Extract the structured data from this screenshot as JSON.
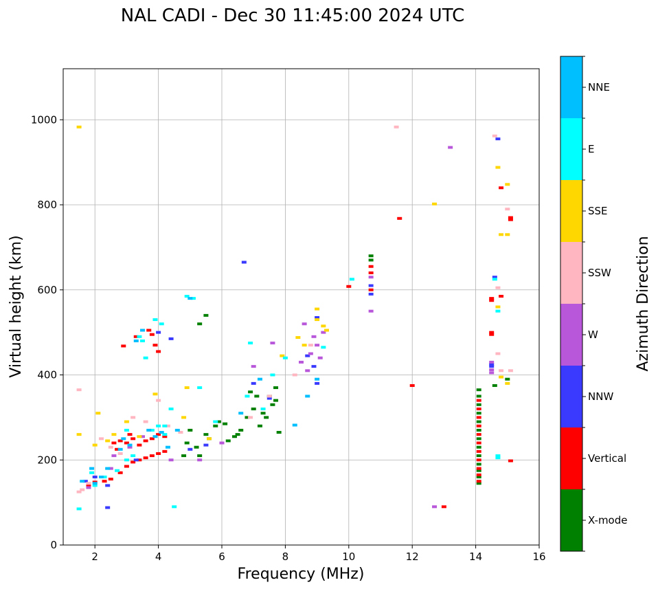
{
  "chart_data": {
    "type": "scatter",
    "title": "NAL CADI - Dec 30 11:45:00 2024 UTC",
    "xlabel": "Frequency (MHz)",
    "ylabel": "Virtual height (km)",
    "xlim": [
      1,
      16
    ],
    "ylim": [
      0,
      1120
    ],
    "xticks": [
      2,
      4,
      6,
      8,
      10,
      12,
      14,
      16
    ],
    "yticks": [
      0,
      200,
      400,
      600,
      800,
      1000
    ],
    "grid": true,
    "colorbar": {
      "label": "Azimuth Direction",
      "categories": [
        "X-mode",
        "Vertical",
        "NNW",
        "W",
        "SSW",
        "SSE",
        "E",
        "NNE"
      ],
      "colors": [
        "#008000",
        "#ff0000",
        "#3a3aff",
        "#b857d9",
        "#ffb6c1",
        "#ffd700",
        "#00ffff",
        "#00bfff"
      ]
    },
    "series": [
      {
        "name": "X-mode",
        "points": [
          [
            5.2,
            230
          ],
          [
            5.5,
            260
          ],
          [
            5.8,
            280
          ],
          [
            6.1,
            285
          ],
          [
            6.4,
            255
          ],
          [
            6.6,
            270
          ],
          [
            6.8,
            300
          ],
          [
            7.0,
            320
          ],
          [
            7.2,
            280
          ],
          [
            7.4,
            300
          ],
          [
            7.6,
            330
          ],
          [
            7.7,
            370
          ],
          [
            7.8,
            265
          ],
          [
            7.5,
            350
          ],
          [
            7.3,
            310
          ],
          [
            6.9,
            360
          ],
          [
            6.2,
            245
          ],
          [
            5.6,
            250
          ],
          [
            5.0,
            270
          ],
          [
            4.8,
            210
          ],
          [
            4.9,
            240
          ],
          [
            5.3,
            210
          ],
          [
            5.9,
            290
          ],
          [
            6.5,
            260
          ],
          [
            7.1,
            350
          ],
          [
            7.7,
            340
          ],
          [
            5.5,
            540
          ],
          [
            5.3,
            520
          ],
          [
            10.7,
            680
          ],
          [
            10.7,
            670
          ],
          [
            14.1,
            145
          ],
          [
            14.1,
            160
          ],
          [
            14.1,
            175
          ],
          [
            14.1,
            190
          ],
          [
            14.1,
            210
          ],
          [
            14.1,
            230
          ],
          [
            14.1,
            250
          ],
          [
            14.1,
            270
          ],
          [
            14.1,
            290
          ],
          [
            14.1,
            310
          ],
          [
            14.1,
            330
          ],
          [
            14.1,
            350
          ],
          [
            14.1,
            365
          ],
          [
            15.0,
            390
          ],
          [
            14.6,
            375
          ]
        ]
      },
      {
        "name": "Vertical",
        "points": [
          [
            1.8,
            140
          ],
          [
            2.0,
            148
          ],
          [
            2.3,
            150
          ],
          [
            2.5,
            155
          ],
          [
            2.8,
            170
          ],
          [
            3.0,
            185
          ],
          [
            3.2,
            195
          ],
          [
            3.4,
            200
          ],
          [
            3.6,
            205
          ],
          [
            3.8,
            210
          ],
          [
            4.0,
            215
          ],
          [
            4.2,
            220
          ],
          [
            2.6,
            240
          ],
          [
            2.8,
            245
          ],
          [
            3.0,
            240
          ],
          [
            3.2,
            250
          ],
          [
            3.4,
            235
          ],
          [
            3.6,
            245
          ],
          [
            3.8,
            250
          ],
          [
            4.0,
            260
          ],
          [
            4.2,
            255
          ],
          [
            3.7,
            505
          ],
          [
            3.8,
            495
          ],
          [
            3.9,
            470
          ],
          [
            4.0,
            455
          ],
          [
            3.5,
            480
          ],
          [
            3.3,
            490
          ],
          [
            2.9,
            468
          ],
          [
            3.1,
            260
          ],
          [
            2.7,
            225
          ],
          [
            10.7,
            600
          ],
          [
            10.7,
            640
          ],
          [
            10.7,
            655
          ],
          [
            12.0,
            375
          ],
          [
            14.1,
            150
          ],
          [
            14.1,
            165
          ],
          [
            14.1,
            180
          ],
          [
            14.1,
            200
          ],
          [
            14.1,
            220
          ],
          [
            14.1,
            240
          ],
          [
            14.1,
            260
          ],
          [
            14.1,
            280
          ],
          [
            14.1,
            300
          ],
          [
            14.1,
            320
          ],
          [
            14.1,
            340
          ],
          [
            14.5,
            500
          ],
          [
            14.5,
            495
          ],
          [
            14.5,
            580
          ],
          [
            14.5,
            575
          ],
          [
            14.8,
            840
          ],
          [
            14.8,
            585
          ],
          [
            15.1,
            765
          ],
          [
            15.1,
            770
          ],
          [
            13.0,
            90
          ],
          [
            15.1,
            198
          ],
          [
            11.6,
            768
          ],
          [
            10.0,
            608
          ]
        ]
      },
      {
        "name": "NNW",
        "points": [
          [
            1.7,
            150
          ],
          [
            2.0,
            160
          ],
          [
            2.4,
            88
          ],
          [
            3.3,
            200
          ],
          [
            4.0,
            500
          ],
          [
            4.4,
            485
          ],
          [
            5.0,
            225
          ],
          [
            5.5,
            235
          ],
          [
            6.7,
            665
          ],
          [
            7.0,
            380
          ],
          [
            7.5,
            345
          ],
          [
            8.7,
            445
          ],
          [
            8.9,
            420
          ],
          [
            9.0,
            380
          ],
          [
            9.0,
            535
          ],
          [
            10.7,
            590
          ],
          [
            10.7,
            610
          ],
          [
            14.5,
            420
          ],
          [
            14.5,
            425
          ],
          [
            14.7,
            955
          ],
          [
            14.6,
            630
          ],
          [
            2.4,
            140
          ]
        ]
      },
      {
        "name": "W",
        "points": [
          [
            2.5,
            180
          ],
          [
            3.1,
            230
          ],
          [
            3.5,
            255
          ],
          [
            4.4,
            200
          ],
          [
            6.0,
            240
          ],
          [
            7.0,
            420
          ],
          [
            7.6,
            475
          ],
          [
            8.5,
            430
          ],
          [
            8.7,
            410
          ],
          [
            8.8,
            450
          ],
          [
            8.9,
            490
          ],
          [
            9.0,
            470
          ],
          [
            9.1,
            440
          ],
          [
            9.2,
            500
          ],
          [
            8.6,
            520
          ],
          [
            10.7,
            550
          ],
          [
            10.7,
            630
          ],
          [
            13.2,
            935
          ],
          [
            12.7,
            90
          ],
          [
            14.5,
            405
          ],
          [
            14.5,
            412
          ],
          [
            14.5,
            430
          ],
          [
            1.8,
            135
          ],
          [
            2.6,
            210
          ],
          [
            5.3,
            200
          ]
        ]
      },
      {
        "name": "SSW",
        "points": [
          [
            1.5,
            365
          ],
          [
            1.6,
            130
          ],
          [
            1.8,
            145
          ],
          [
            2.2,
            250
          ],
          [
            2.5,
            230
          ],
          [
            2.8,
            215
          ],
          [
            3.2,
            300
          ],
          [
            3.6,
            290
          ],
          [
            4.0,
            340
          ],
          [
            4.3,
            280
          ],
          [
            4.7,
            265
          ],
          [
            6.9,
            300
          ],
          [
            7.5,
            350
          ],
          [
            8.3,
            400
          ],
          [
            8.8,
            470
          ],
          [
            11.5,
            983
          ],
          [
            14.6,
            962
          ],
          [
            14.7,
            605
          ],
          [
            14.7,
            450
          ],
          [
            14.8,
            410
          ],
          [
            15.1,
            410
          ],
          [
            15.0,
            790
          ],
          [
            1.5,
            125
          ]
        ]
      },
      {
        "name": "SSE",
        "points": [
          [
            1.5,
            983
          ],
          [
            1.5,
            260
          ],
          [
            2.1,
            310
          ],
          [
            2.4,
            245
          ],
          [
            2.6,
            260
          ],
          [
            3.0,
            290
          ],
          [
            3.4,
            255
          ],
          [
            3.9,
            355
          ],
          [
            4.8,
            300
          ],
          [
            4.9,
            370
          ],
          [
            5.6,
            250
          ],
          [
            7.9,
            445
          ],
          [
            8.4,
            488
          ],
          [
            8.6,
            470
          ],
          [
            9.0,
            555
          ],
          [
            9.2,
            515
          ],
          [
            9.0,
            530
          ],
          [
            9.3,
            505
          ],
          [
            12.7,
            802
          ],
          [
            14.7,
            888
          ],
          [
            14.8,
            730
          ],
          [
            15.0,
            730
          ],
          [
            15.0,
            848
          ],
          [
            14.7,
            560
          ],
          [
            14.8,
            395
          ],
          [
            15.0,
            380
          ],
          [
            2.0,
            235
          ]
        ]
      },
      {
        "name": "E",
        "points": [
          [
            1.5,
            85
          ],
          [
            2.0,
            140
          ],
          [
            2.3,
            160
          ],
          [
            2.7,
            175
          ],
          [
            3.0,
            200
          ],
          [
            3.2,
            210
          ],
          [
            3.4,
            490
          ],
          [
            3.5,
            480
          ],
          [
            3.6,
            440
          ],
          [
            3.9,
            530
          ],
          [
            4.1,
            520
          ],
          [
            4.2,
            260
          ],
          [
            4.4,
            320
          ],
          [
            4.5,
            90
          ],
          [
            4.9,
            585
          ],
          [
            5.1,
            580
          ],
          [
            5.3,
            370
          ],
          [
            5.8,
            290
          ],
          [
            6.8,
            350
          ],
          [
            6.9,
            475
          ],
          [
            7.3,
            320
          ],
          [
            7.6,
            400
          ],
          [
            8.0,
            440
          ],
          [
            9.2,
            465
          ],
          [
            10.1,
            625
          ],
          [
            14.6,
            625
          ],
          [
            14.7,
            550
          ],
          [
            14.7,
            210
          ],
          [
            14.7,
            205
          ],
          [
            3.0,
            270
          ],
          [
            3.8,
            270
          ],
          [
            4.0,
            280
          ],
          [
            4.2,
            280
          ],
          [
            1.9,
            170
          ]
        ]
      },
      {
        "name": "NNE",
        "points": [
          [
            1.6,
            150
          ],
          [
            2.0,
            145
          ],
          [
            2.2,
            160
          ],
          [
            2.8,
            225
          ],
          [
            3.3,
            480
          ],
          [
            3.5,
            505
          ],
          [
            3.7,
            270
          ],
          [
            3.9,
            255
          ],
          [
            4.1,
            265
          ],
          [
            4.3,
            230
          ],
          [
            5.0,
            580
          ],
          [
            6.6,
            310
          ],
          [
            7.2,
            390
          ],
          [
            8.3,
            282
          ],
          [
            8.7,
            350
          ],
          [
            9.0,
            390
          ],
          [
            1.9,
            180
          ],
          [
            2.4,
            180
          ],
          [
            2.9,
            250
          ],
          [
            3.1,
            235
          ],
          [
            4.6,
            270
          ]
        ]
      }
    ]
  }
}
